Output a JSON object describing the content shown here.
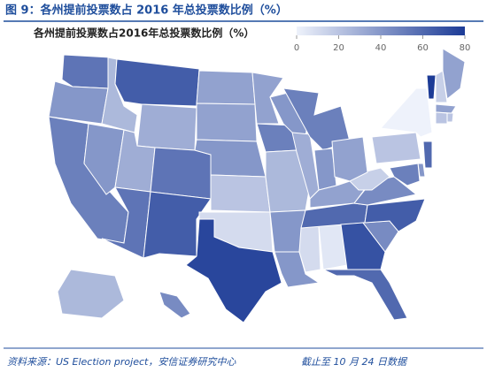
{
  "header": {
    "title": "图 9：各州提前投票数占 2016 年总投票数比例（%）"
  },
  "chart_data": {
    "type": "choropleth",
    "title": "各州提前投票数占2016年总投票数比例（%）",
    "values": [
      55,
      40,
      50,
      40,
      25,
      65,
      30,
      30,
      55,
      55,
      65,
      35,
      35,
      40,
      20,
      10,
      75,
      35,
      50,
      25,
      40,
      40,
      40,
      30,
      10,
      5,
      50,
      40,
      35,
      60,
      70,
      60,
      45,
      65,
      45,
      15,
      35,
      20,
      0,
      80,
      15,
      35,
      35,
      20,
      20,
      60,
      40,
      50,
      25,
      45
    ],
    "color_range": [
      "#eef2fb",
      "#1c3b96"
    ],
    "legend_lim": [
      0,
      80
    ],
    "legend_ticks": [
      0,
      20,
      40,
      60,
      80
    ]
  },
  "footer": {
    "source": "资料来源：US Election project，安信证券研究中心",
    "note": "截止至 10 月 24 日数据"
  }
}
